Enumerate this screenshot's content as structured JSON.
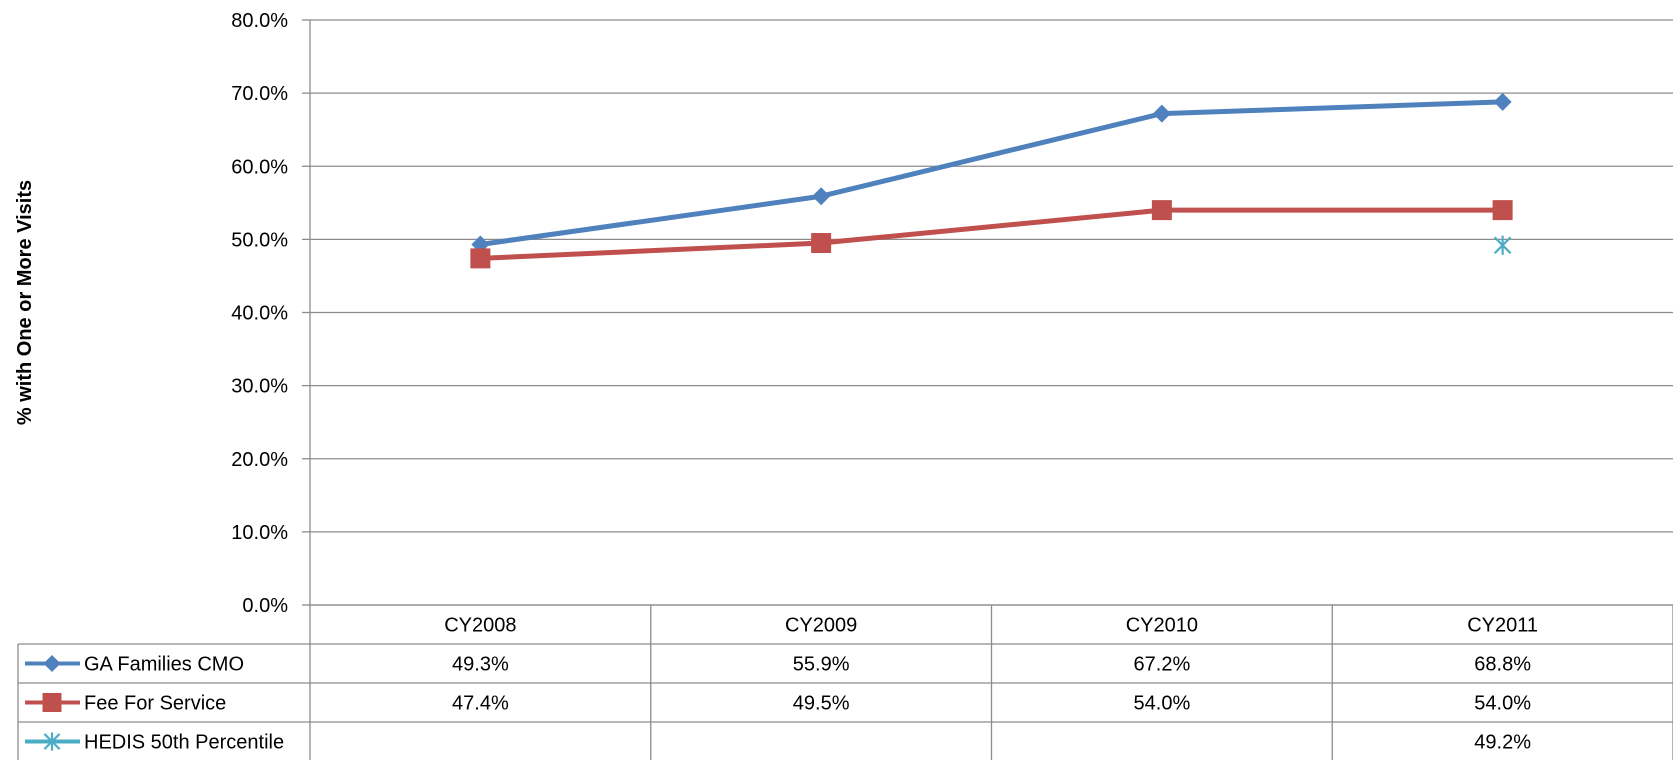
{
  "chart_data": {
    "type": "line",
    "title": "",
    "xlabel": "",
    "ylabel": "% with One or More Visits",
    "ylim": [
      0,
      80
    ],
    "ytick_step": 10,
    "ytick_format": "percent_1dp",
    "grid": true,
    "legend": "data-table",
    "categories": [
      "CY2008",
      "CY2009",
      "CY2010",
      "CY2011"
    ],
    "yticks": [
      "0.0%",
      "10.0%",
      "20.0%",
      "30.0%",
      "40.0%",
      "50.0%",
      "60.0%",
      "70.0%",
      "80.0%"
    ],
    "series": [
      {
        "name": "GA Families CMO",
        "values": [
          49.3,
          55.9,
          67.2,
          68.8
        ],
        "labels": [
          "49.3%",
          "55.9%",
          "67.2%",
          "68.8%"
        ],
        "color": "#4F81BD",
        "marker": "diamond"
      },
      {
        "name": "Fee For Service",
        "values": [
          47.4,
          49.5,
          54.0,
          54.0
        ],
        "labels": [
          "47.4%",
          "49.5%",
          "54.0%",
          "54.0%"
        ],
        "color": "#C0504D",
        "marker": "square"
      },
      {
        "name": "HEDIS 50th Percentile",
        "values": [
          null,
          null,
          null,
          49.2
        ],
        "labels": [
          "",
          "",
          "",
          "49.2%"
        ],
        "color": "#4BACC6",
        "marker": "star"
      }
    ]
  }
}
